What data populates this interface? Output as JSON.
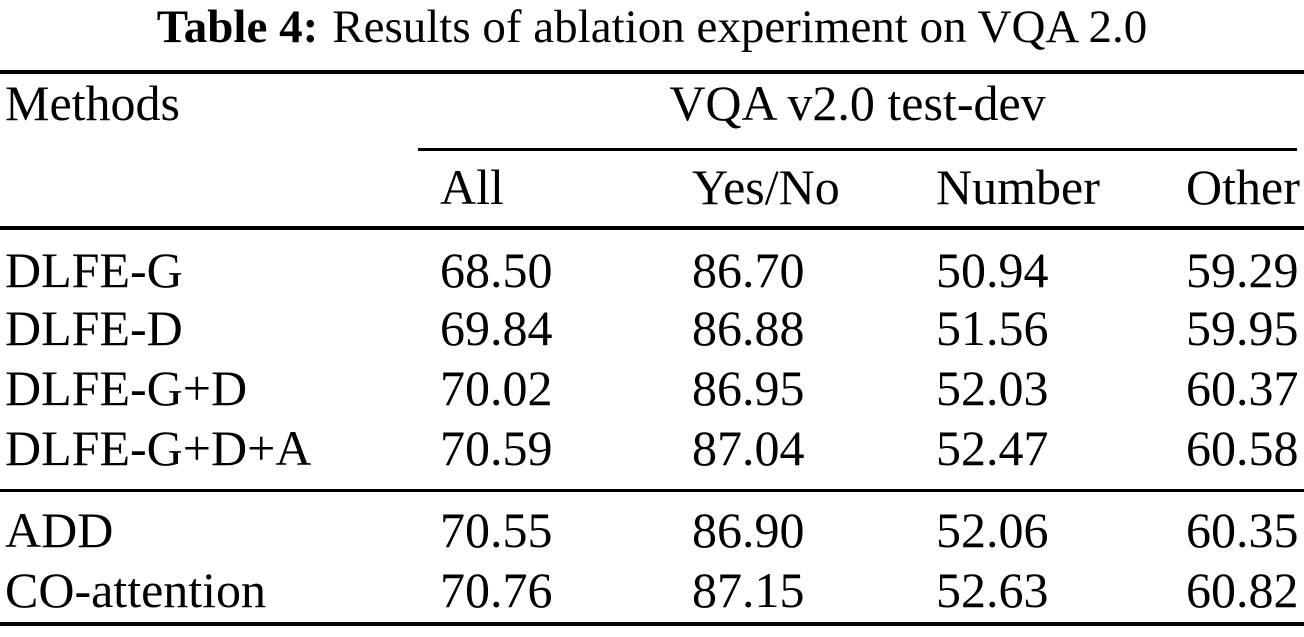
{
  "caption": {
    "label": "Table 4:",
    "text": "Results of ablation experiment on VQA 2.0"
  },
  "table": {
    "methods_header": "Methods",
    "group_header": "VQA v2.0 test-dev",
    "columns": [
      "All",
      "Yes/No",
      "Number",
      "Other"
    ],
    "groups": [
      {
        "rows": [
          {
            "method": "DLFE-G",
            "all": "68.50",
            "yes_no": "86.70",
            "number": "50.94",
            "other": "59.29"
          },
          {
            "method": "DLFE-D",
            "all": "69.84",
            "yes_no": "86.88",
            "number": "51.56",
            "other": "59.95"
          },
          {
            "method": "DLFE-G+D",
            "all": "70.02",
            "yes_no": "86.95",
            "number": "52.03",
            "other": "60.37"
          },
          {
            "method": "DLFE-G+D+A",
            "all": "70.59",
            "yes_no": "87.04",
            "number": "52.47",
            "other": "60.58"
          }
        ]
      },
      {
        "rows": [
          {
            "method": "ADD",
            "all": "70.55",
            "yes_no": "86.90",
            "number": "52.06",
            "other": "60.35"
          },
          {
            "method": "CO-attention",
            "all": "70.76",
            "yes_no": "87.15",
            "number": "52.63",
            "other": "60.82"
          }
        ]
      }
    ]
  },
  "colors": {
    "background": "#ffffff",
    "text": "#000000",
    "rule": "#000000"
  }
}
